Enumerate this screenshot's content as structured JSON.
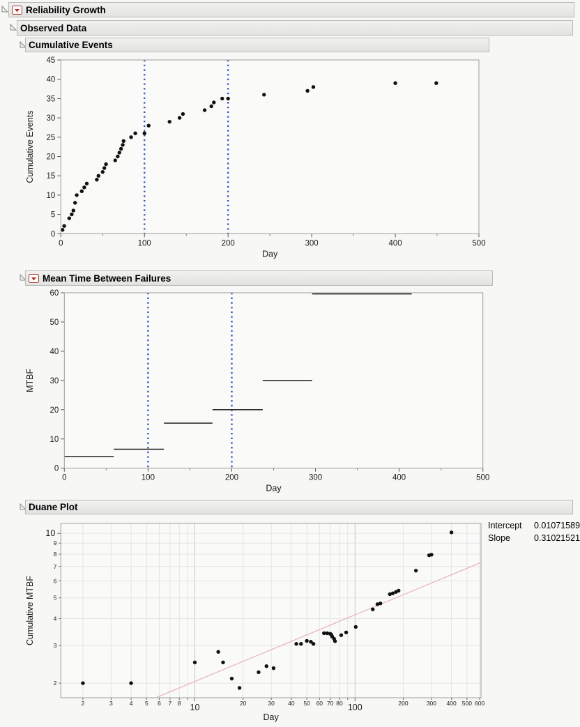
{
  "report_title": "Reliability Growth",
  "outline": {
    "reliability_growth": {
      "label": "Reliability Growth",
      "has_menu": true
    },
    "observed_data": {
      "label": "Observed Data",
      "has_menu": false
    },
    "cumulative_events": {
      "label": "Cumulative Events",
      "has_menu": false
    },
    "mtbf": {
      "label": "Mean Time Between Failures",
      "has_menu": true
    },
    "duane": {
      "label": "Duane Plot",
      "has_menu": false
    }
  },
  "duane_stats": {
    "intercept_label": "Intercept",
    "intercept_value": "0.01071589",
    "slope_label": "Slope",
    "slope_value": "0.31021521"
  },
  "colors": {
    "phase_line_blue": "#3a57c2",
    "fit_line_pink": "#e8b2b2",
    "point_black": "#111111",
    "grid_light": "#e4e4e3",
    "grid_dark": "#c6c6c5",
    "frame_gray": "#9c9c9b",
    "plot_bg": "#fafaf9"
  },
  "chart_data": [
    {
      "type": "scatter",
      "name": "cumulative-events",
      "xlabel": "Day",
      "ylabel": "Cumulative Events",
      "xlim": [
        0,
        500
      ],
      "ylim": [
        0,
        45
      ],
      "xticks": [
        0,
        100,
        200,
        300,
        400,
        500
      ],
      "xminor": [
        50,
        150,
        250,
        350,
        450
      ],
      "yticks": [
        0,
        5,
        10,
        15,
        20,
        25,
        30,
        35,
        40,
        45
      ],
      "ref_lines_x": [
        100,
        200
      ],
      "points": [
        [
          2,
          1
        ],
        [
          4,
          2
        ],
        [
          10,
          4
        ],
        [
          13,
          5
        ],
        [
          15,
          6
        ],
        [
          17,
          8
        ],
        [
          19,
          10
        ],
        [
          25,
          11
        ],
        [
          28,
          12
        ],
        [
          31,
          13
        ],
        [
          43,
          14
        ],
        [
          45,
          15
        ],
        [
          50,
          16
        ],
        [
          52,
          17
        ],
        [
          54,
          18
        ],
        [
          65,
          19
        ],
        [
          68,
          20
        ],
        [
          70,
          21
        ],
        [
          72,
          22
        ],
        [
          74,
          23
        ],
        [
          75,
          24
        ],
        [
          84,
          25
        ],
        [
          89,
          26
        ],
        [
          100,
          26
        ],
        [
          105,
          28
        ],
        [
          130,
          29
        ],
        [
          142,
          30
        ],
        [
          146,
          31
        ],
        [
          172,
          32
        ],
        [
          180,
          33
        ],
        [
          183,
          34
        ],
        [
          193,
          35
        ],
        [
          200,
          35
        ],
        [
          243,
          36
        ],
        [
          295,
          37
        ],
        [
          302,
          38
        ],
        [
          400,
          39
        ],
        [
          449,
          39
        ]
      ]
    },
    {
      "type": "step",
      "name": "mtbf",
      "xlabel": "Day",
      "ylabel": "MTBF",
      "xlim": [
        0,
        500
      ],
      "ylim": [
        0,
        60
      ],
      "xticks": [
        0,
        100,
        200,
        300,
        400,
        500
      ],
      "xminor": [
        50,
        150,
        250,
        350,
        450
      ],
      "yticks": [
        0,
        10,
        20,
        30,
        40,
        50,
        60
      ],
      "ref_lines_x": [
        100,
        200
      ],
      "segments": [
        [
          0,
          59,
          4.0
        ],
        [
          59,
          119,
          6.5
        ],
        [
          119,
          177,
          15.4
        ],
        [
          177,
          237,
          20.0
        ],
        [
          237,
          296,
          30.0
        ],
        [
          296,
          415,
          59.6
        ]
      ]
    },
    {
      "type": "scatter_loglog",
      "name": "duane",
      "xlabel": "Day",
      "ylabel": "Cumulative MTBF",
      "xlim": [
        1.457,
        611.6
      ],
      "ylim": [
        1.71,
        11.12
      ],
      "x_major": [
        10,
        100
      ],
      "x_minor_labeled": [
        2,
        3,
        4,
        5,
        6,
        7,
        8,
        20,
        30,
        40,
        50,
        60,
        70,
        80,
        200,
        300,
        400,
        500,
        600
      ],
      "x_grid": [
        2,
        3,
        4,
        5,
        6,
        7,
        8,
        9,
        10,
        20,
        30,
        40,
        50,
        60,
        70,
        80,
        90,
        100,
        200,
        300,
        400,
        500,
        600
      ],
      "y_major": [
        10
      ],
      "y_minor_labeled": [
        2,
        3,
        4,
        5,
        6,
        7,
        8,
        9
      ],
      "y_grid": [
        2,
        3,
        4,
        5,
        6,
        7,
        8,
        9,
        10
      ],
      "fit_line": [
        [
          5.8,
          1.72
        ],
        [
          608,
          7.3
        ]
      ],
      "fit": {
        "intercept": 0.01071589,
        "slope": 0.31021521
      },
      "points": [
        [
          2,
          2.0
        ],
        [
          4,
          2.0
        ],
        [
          10,
          2.5
        ],
        [
          14,
          2.8
        ],
        [
          15,
          2.5
        ],
        [
          17,
          2.1
        ],
        [
          19,
          1.9
        ],
        [
          25,
          2.25
        ],
        [
          28,
          2.4
        ],
        [
          31,
          2.35
        ],
        [
          43,
          3.05
        ],
        [
          46,
          3.05
        ],
        [
          50,
          3.15
        ],
        [
          53,
          3.12
        ],
        [
          55,
          3.05
        ],
        [
          64,
          3.42
        ],
        [
          67,
          3.42
        ],
        [
          70,
          3.4
        ],
        [
          71,
          3.37
        ],
        [
          72,
          3.3
        ],
        [
          74,
          3.22
        ],
        [
          75,
          3.14
        ],
        [
          82,
          3.35
        ],
        [
          88,
          3.45
        ],
        [
          101,
          3.66
        ],
        [
          129,
          4.42
        ],
        [
          138,
          4.67
        ],
        [
          144,
          4.71
        ],
        [
          165,
          5.2
        ],
        [
          172,
          5.25
        ],
        [
          180,
          5.33
        ],
        [
          187,
          5.4
        ],
        [
          240,
          6.7
        ],
        [
          290,
          7.9
        ],
        [
          300,
          7.95
        ],
        [
          400,
          10.1
        ]
      ]
    }
  ]
}
